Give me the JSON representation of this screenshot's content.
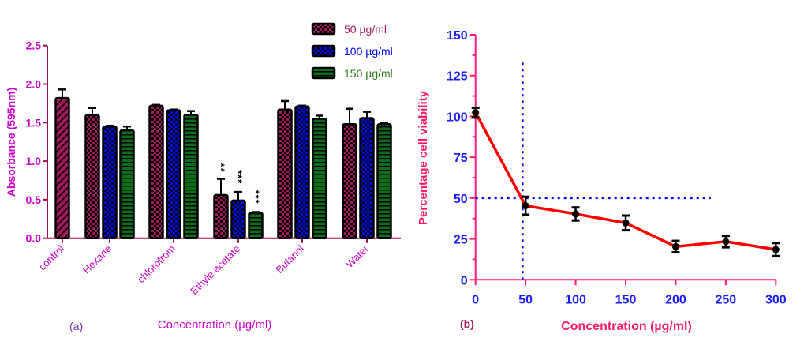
{
  "chart_data": [
    {
      "panel_label": "(a)",
      "type": "bar",
      "title": "",
      "xlabel": "Concentration (µg/ml)",
      "ylabel": "Absorbance (595nm)",
      "ylim": [
        0,
        2.5
      ],
      "yticks": [
        "0.0",
        "0.5",
        "1.0",
        "1.5",
        "2.0",
        "2.5"
      ],
      "categories": [
        "control",
        "Hexane",
        "chlorofrom",
        "Ethyle acetate",
        "Butanol",
        "Water"
      ],
      "control": {
        "value": 1.82,
        "error": 0.11
      },
      "series": [
        {
          "name": "50 µg/ml",
          "color": "#a0195a",
          "pattern": "checker",
          "values": [
            null,
            1.6,
            1.72,
            0.56,
            1.67,
            1.48
          ],
          "errors": [
            null,
            0.09,
            0.01,
            0.21,
            0.11,
            0.2
          ],
          "annotations": [
            null,
            null,
            null,
            "**",
            null,
            null
          ]
        },
        {
          "name": "100 µg/ml",
          "color": "#0000ff",
          "pattern": "checker",
          "values": [
            null,
            1.45,
            1.66,
            0.49,
            1.71,
            1.56
          ],
          "errors": [
            null,
            0.01,
            0.01,
            0.11,
            0.01,
            0.08
          ],
          "annotations": [
            null,
            null,
            null,
            "***",
            null,
            null
          ]
        },
        {
          "name": "150 µg/ml",
          "color": "#0a6e1a",
          "pattern": "horizontal-stripes",
          "values": [
            null,
            1.4,
            1.6,
            0.33,
            1.55,
            1.48
          ],
          "errors": [
            null,
            0.05,
            0.05,
            0.01,
            0.04,
            0.01
          ],
          "annotations": [
            null,
            null,
            null,
            "***",
            null,
            null
          ]
        }
      ],
      "legend": "top-right",
      "grid": false
    },
    {
      "panel_label": "(b)",
      "type": "line",
      "title": "",
      "xlabel": "Concentration (µg/ml)",
      "ylabel": "Percentage cell viability",
      "xlim": [
        0,
        300
      ],
      "ylim": [
        0,
        150
      ],
      "xticks": [
        "0",
        "50",
        "100",
        "150",
        "200",
        "250",
        "300"
      ],
      "yticks": [
        "0",
        "25",
        "50",
        "75",
        "100",
        "125",
        "150"
      ],
      "series": [
        {
          "color": "#ff0000",
          "x": [
            0,
            50,
            100,
            150,
            200,
            250,
            300
          ],
          "y": [
            102.3,
            45.3,
            40.3,
            34.8,
            20.3,
            23.4,
            18.5
          ],
          "errors": [
            3,
            5.5,
            4,
            4.5,
            3.5,
            3.5,
            4
          ]
        }
      ],
      "reference_lines": [
        {
          "orientation": "horizontal",
          "y": 50,
          "x_range": [
            0,
            235
          ],
          "color": "#0000ff",
          "style": "dotted"
        },
        {
          "orientation": "vertical",
          "x": 47,
          "y_range": [
            0,
            133
          ],
          "color": "#0000ff",
          "style": "dotted"
        }
      ],
      "grid": false
    }
  ]
}
